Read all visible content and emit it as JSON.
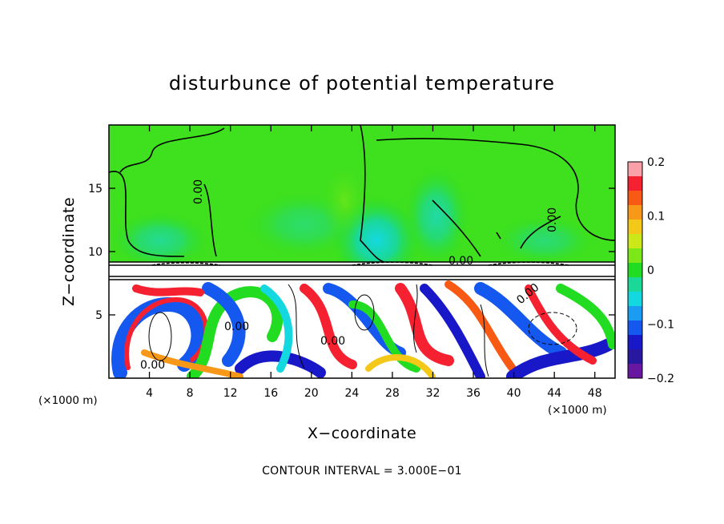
{
  "chart_data": {
    "type": "heatmap",
    "title": "disturbunce of potential temperature",
    "xlabel": "X−coordinate",
    "ylabel": "Z−coordinate",
    "x_unit": "(×1000 m)",
    "x_unit_right": "(×1000 m)",
    "xlim": [
      0,
      50
    ],
    "ylim": [
      0,
      20
    ],
    "x_ticks": [
      4,
      8,
      12,
      16,
      20,
      24,
      28,
      32,
      36,
      40,
      44,
      48
    ],
    "x_tick_labels": [
      "4",
      "8",
      "12",
      "16",
      "20",
      "24",
      "28",
      "32",
      "36",
      "40",
      "44",
      "48"
    ],
    "y_ticks": [
      5,
      10,
      15
    ],
    "y_tick_labels": [
      "5",
      "10",
      "15"
    ],
    "colorbar": {
      "range": [
        -0.2,
        0.2
      ],
      "ticks": [
        0.2,
        0.1,
        0,
        -0.1,
        -0.2
      ],
      "tick_labels": [
        "0.2",
        "0.1",
        "0",
        "−0.1",
        "−0.2"
      ],
      "colors": [
        "#f9a0a8",
        "#f52030",
        "#f85a14",
        "#f89818",
        "#f4c818",
        "#cce818",
        "#7de818",
        "#22dc22",
        "#1ad898",
        "#14d8e0",
        "#1a9cf0",
        "#1458f0",
        "#1818c8",
        "#2818a0",
        "#6818a0"
      ]
    },
    "contour_labels": [
      "0.00",
      "0.00",
      "0.00",
      "0.00",
      "0.00",
      "0.00",
      "0.00"
    ],
    "footnote": "CONTOUR INTERVAL = 3.000E−01"
  }
}
